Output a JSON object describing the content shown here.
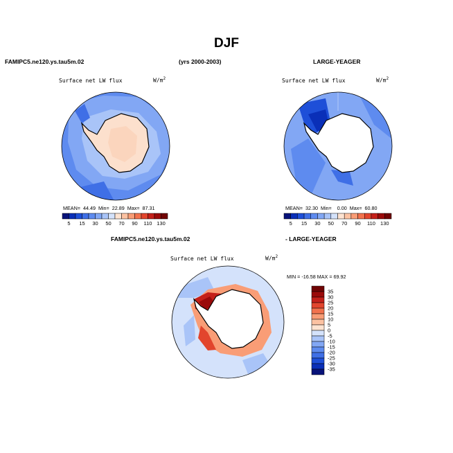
{
  "page": {
    "title": "DJF",
    "left_case": "FAMIPC5.ne120.ys.tau5m.02",
    "years": "(yrs 2000-2003)",
    "right_case": "LARGE-YEAGER",
    "diff_case_a": "FAMIPC5.ne120.ys.tau5m.02",
    "diff_case_b": "- LARGE-YEAGER"
  },
  "colors": {
    "blues": [
      "#08137a",
      "#0a2fb8",
      "#1e4fd8",
      "#3f6fe6",
      "#5e8bef",
      "#82a7f4",
      "#a9c4f8",
      "#d4e2fb"
    ],
    "reds": [
      "#fde3d1",
      "#fcc2a2",
      "#f99d76",
      "#f2724d",
      "#e2452d",
      "#c4201a",
      "#9a0a0a",
      "#700404"
    ]
  },
  "chart_data": [
    {
      "type": "heatmap",
      "title": "Surface net LW flux",
      "units": "W/m",
      "units_exp": "2",
      "stats": {
        "mean_label": "MEAN=",
        "mean": "44.49",
        "min_label": "Min=",
        "min": "22.89",
        "max_label": "Max=",
        "max": "87.31"
      },
      "colorbar_ticks": [
        "5",
        "15",
        "30",
        "50",
        "70",
        "90",
        "110",
        "130"
      ]
    },
    {
      "type": "heatmap",
      "title": "",
      "units": "W/m",
      "units_exp": "2",
      "stats": {
        "mean_label": "MEAN=",
        "mean": "32.30",
        "min_label": "Min=",
        "min": "0.00",
        "max_label": "Max=",
        "max": "60.80"
      },
      "colorbar_ticks": [
        "5",
        "15",
        "30",
        "50",
        "70",
        "90",
        "110",
        "130"
      ]
    },
    {
      "type": "heatmap",
      "title": "Surface net LW flux",
      "units": "W/m",
      "units_exp": "2",
      "stats_text": "MIN = -16.58 MAX =  69.92",
      "colorbar_ticks": [
        "35",
        "30",
        "25",
        "20",
        "15",
        "10",
        "5",
        "0",
        "-5",
        "-10",
        "-15",
        "-20",
        "-25",
        "-30",
        "-35"
      ]
    }
  ]
}
